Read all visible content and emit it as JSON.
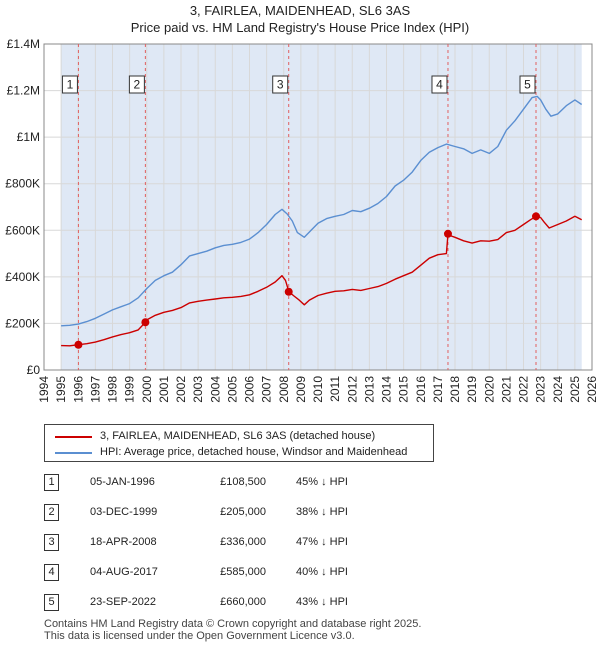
{
  "header": {
    "title_line1": "3, FAIRLEA, MAIDENHEAD, SL6 3AS",
    "title_line2": "Price paid vs. HM Land Registry's House Price Index (HPI)"
  },
  "colors": {
    "property": "#cc0000",
    "hpi": "#5b8fd1",
    "shade": "#dfe8f5",
    "grid": "#d8d8d8",
    "marker_vline": "#e06060"
  },
  "chart_data": {
    "type": "line",
    "title": "3, FAIRLEA, MAIDENHEAD, SL6 3AS — Price paid vs. HM Land Registry's House Price Index (HPI)",
    "xlabel": "",
    "ylabel": "",
    "xlim": [
      1994,
      2026
    ],
    "ylim": [
      0,
      1400000
    ],
    "grid": true,
    "y_ticks": [
      {
        "value": 0,
        "label": "£0"
      },
      {
        "value": 200000,
        "label": "£200K"
      },
      {
        "value": 400000,
        "label": "£400K"
      },
      {
        "value": 600000,
        "label": "£600K"
      },
      {
        "value": 800000,
        "label": "£800K"
      },
      {
        "value": 1000000,
        "label": "£1M"
      },
      {
        "value": 1200000,
        "label": "£1.2M"
      },
      {
        "value": 1400000,
        "label": "£1.4M"
      }
    ],
    "x_ticks": [
      "1994",
      "1995",
      "1996",
      "1997",
      "1998",
      "1999",
      "2000",
      "2001",
      "2002",
      "2003",
      "2004",
      "2005",
      "2006",
      "2007",
      "2008",
      "2009",
      "2010",
      "2011",
      "2012",
      "2013",
      "2014",
      "2015",
      "2016",
      "2017",
      "2018",
      "2019",
      "2020",
      "2021",
      "2022",
      "2023",
      "2024",
      "2025",
      "2026"
    ],
    "data_range": {
      "start": 1995.0,
      "end": 2025.4
    },
    "series": [
      {
        "name": "3, FAIRLEA, MAIDENHEAD, SL6 3AS (detached house)",
        "color": "#cc0000",
        "points": [
          [
            1995.0,
            105000
          ],
          [
            1995.5,
            104000
          ],
          [
            1996.01,
            108500
          ],
          [
            1996.5,
            113000
          ],
          [
            1997.0,
            120000
          ],
          [
            1997.5,
            130000
          ],
          [
            1998.0,
            142000
          ],
          [
            1998.5,
            152000
          ],
          [
            1999.0,
            160000
          ],
          [
            1999.5,
            172000
          ],
          [
            1999.92,
            205000
          ],
          [
            2000.0,
            215000
          ],
          [
            2000.5,
            235000
          ],
          [
            2001.0,
            248000
          ],
          [
            2001.5,
            256000
          ],
          [
            2002.0,
            268000
          ],
          [
            2002.5,
            288000
          ],
          [
            2003.0,
            295000
          ],
          [
            2003.5,
            300000
          ],
          [
            2004.0,
            305000
          ],
          [
            2004.5,
            310000
          ],
          [
            2005.0,
            312000
          ],
          [
            2005.5,
            316000
          ],
          [
            2006.0,
            323000
          ],
          [
            2006.5,
            338000
          ],
          [
            2007.0,
            355000
          ],
          [
            2007.5,
            378000
          ],
          [
            2007.9,
            405000
          ],
          [
            2008.1,
            385000
          ],
          [
            2008.3,
            336000
          ],
          [
            2008.6,
            318000
          ],
          [
            2008.9,
            300000
          ],
          [
            2009.2,
            280000
          ],
          [
            2009.5,
            300000
          ],
          [
            2010.0,
            320000
          ],
          [
            2010.5,
            330000
          ],
          [
            2011.0,
            338000
          ],
          [
            2011.5,
            340000
          ],
          [
            2012.0,
            346000
          ],
          [
            2012.5,
            342000
          ],
          [
            2013.0,
            350000
          ],
          [
            2013.5,
            358000
          ],
          [
            2014.0,
            372000
          ],
          [
            2014.5,
            390000
          ],
          [
            2015.0,
            405000
          ],
          [
            2015.5,
            420000
          ],
          [
            2016.0,
            450000
          ],
          [
            2016.5,
            480000
          ],
          [
            2017.0,
            495000
          ],
          [
            2017.5,
            500000
          ],
          [
            2017.59,
            585000
          ],
          [
            2017.8,
            575000
          ],
          [
            2018.0,
            570000
          ],
          [
            2018.5,
            555000
          ],
          [
            2019.0,
            545000
          ],
          [
            2019.5,
            555000
          ],
          [
            2020.0,
            553000
          ],
          [
            2020.5,
            560000
          ],
          [
            2021.0,
            590000
          ],
          [
            2021.5,
            600000
          ],
          [
            2022.0,
            625000
          ],
          [
            2022.4,
            645000
          ],
          [
            2022.73,
            660000
          ],
          [
            2023.0,
            655000
          ],
          [
            2023.2,
            635000
          ],
          [
            2023.5,
            610000
          ],
          [
            2024.0,
            625000
          ],
          [
            2024.5,
            640000
          ],
          [
            2025.0,
            660000
          ],
          [
            2025.4,
            645000
          ]
        ]
      },
      {
        "name": "HPI: Average price, detached house, Windsor and Maidenhead",
        "color": "#5b8fd1",
        "points": [
          [
            1995.0,
            190000
          ],
          [
            1995.5,
            192000
          ],
          [
            1996.0,
            197000
          ],
          [
            1996.5,
            208000
          ],
          [
            1997.0,
            222000
          ],
          [
            1997.5,
            240000
          ],
          [
            1998.0,
            258000
          ],
          [
            1998.5,
            272000
          ],
          [
            1999.0,
            285000
          ],
          [
            1999.5,
            310000
          ],
          [
            2000.0,
            350000
          ],
          [
            2000.5,
            385000
          ],
          [
            2001.0,
            405000
          ],
          [
            2001.5,
            420000
          ],
          [
            2002.0,
            452000
          ],
          [
            2002.5,
            490000
          ],
          [
            2003.0,
            500000
          ],
          [
            2003.5,
            510000
          ],
          [
            2004.0,
            525000
          ],
          [
            2004.5,
            535000
          ],
          [
            2005.0,
            540000
          ],
          [
            2005.5,
            548000
          ],
          [
            2006.0,
            562000
          ],
          [
            2006.5,
            590000
          ],
          [
            2007.0,
            625000
          ],
          [
            2007.5,
            668000
          ],
          [
            2007.9,
            690000
          ],
          [
            2008.2,
            670000
          ],
          [
            2008.5,
            640000
          ],
          [
            2008.8,
            590000
          ],
          [
            2009.2,
            570000
          ],
          [
            2009.6,
            600000
          ],
          [
            2010.0,
            630000
          ],
          [
            2010.5,
            650000
          ],
          [
            2011.0,
            660000
          ],
          [
            2011.5,
            668000
          ],
          [
            2012.0,
            685000
          ],
          [
            2012.5,
            680000
          ],
          [
            2013.0,
            695000
          ],
          [
            2013.5,
            715000
          ],
          [
            2014.0,
            745000
          ],
          [
            2014.5,
            790000
          ],
          [
            2015.0,
            815000
          ],
          [
            2015.5,
            850000
          ],
          [
            2016.0,
            900000
          ],
          [
            2016.5,
            935000
          ],
          [
            2017.0,
            955000
          ],
          [
            2017.5,
            970000
          ],
          [
            2018.0,
            960000
          ],
          [
            2018.5,
            950000
          ],
          [
            2019.0,
            930000
          ],
          [
            2019.5,
            945000
          ],
          [
            2020.0,
            930000
          ],
          [
            2020.5,
            960000
          ],
          [
            2021.0,
            1030000
          ],
          [
            2021.5,
            1070000
          ],
          [
            2022.0,
            1120000
          ],
          [
            2022.5,
            1170000
          ],
          [
            2022.8,
            1175000
          ],
          [
            2023.0,
            1160000
          ],
          [
            2023.3,
            1120000
          ],
          [
            2023.6,
            1090000
          ],
          [
            2024.0,
            1100000
          ],
          [
            2024.5,
            1135000
          ],
          [
            2025.0,
            1160000
          ],
          [
            2025.4,
            1140000
          ]
        ]
      }
    ],
    "sales": [
      {
        "id": "1",
        "date": "05-JAN-1996",
        "x": 1996.01,
        "price": 108500,
        "price_label": "£108,500",
        "hpi_label": "45% ↓ HPI"
      },
      {
        "id": "2",
        "date": "03-DEC-1999",
        "x": 1999.92,
        "price": 205000,
        "price_label": "£205,000",
        "hpi_label": "38% ↓ HPI"
      },
      {
        "id": "3",
        "date": "18-APR-2008",
        "x": 2008.29,
        "price": 336000,
        "price_label": "£336,000",
        "hpi_label": "47% ↓ HPI"
      },
      {
        "id": "4",
        "date": "04-AUG-2017",
        "x": 2017.59,
        "price": 585000,
        "price_label": "£585,000",
        "hpi_label": "40% ↓ HPI"
      },
      {
        "id": "5",
        "date": "23-SEP-2022",
        "x": 2022.73,
        "price": 660000,
        "price_label": "£660,000",
        "hpi_label": "43% ↓ HPI"
      }
    ]
  },
  "legend": {
    "property_label": "3, FAIRLEA, MAIDENHEAD, SL6 3AS (detached house)",
    "hpi_label": "HPI: Average price, detached house, Windsor and Maidenhead"
  },
  "footer": {
    "line1": "Contains HM Land Registry data © Crown copyright and database right 2025.",
    "line2": "This data is licensed under the Open Government Licence v3.0."
  }
}
